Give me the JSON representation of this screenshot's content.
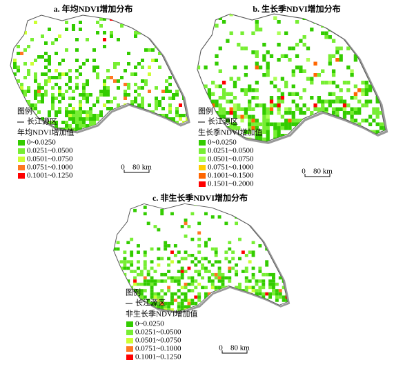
{
  "panels": [
    {
      "title": "a. 年均NDVI增加分布",
      "legend_title": "图例",
      "boundary_label": "长江源区",
      "legend_heading": "年均NDVI增加值",
      "classes": [
        {
          "label": "0~0.0250",
          "color": "#33cc00"
        },
        {
          "label": "0.0251~0.0500",
          "color": "#77ee33"
        },
        {
          "label": "0.0501~0.0750",
          "color": "#ccff33"
        },
        {
          "label": "0.0751~0.1000",
          "color": "#ff7722"
        },
        {
          "label": "0.1001~0.1250",
          "color": "#ff0000"
        }
      ],
      "scale_zero": "0",
      "scale_label": "80 km"
    },
    {
      "title": "b. 生长季NDVI增加分布",
      "legend_title": "图例",
      "boundary_label": "长江源区",
      "legend_heading": "生长季NDVI增加值",
      "classes": [
        {
          "label": "0~0.0250",
          "color": "#33cc00"
        },
        {
          "label": "0.0251~0.0500",
          "color": "#77ee33"
        },
        {
          "label": "0.0501~0.0750",
          "color": "#aaff55"
        },
        {
          "label": "0.0751~0.1000",
          "color": "#ffcc00"
        },
        {
          "label": "0.1001~0.1500",
          "color": "#ff6600"
        },
        {
          "label": "0.1501~0.2000",
          "color": "#ff0000"
        }
      ],
      "scale_zero": "0",
      "scale_label": "80 km"
    },
    {
      "title": "c. 非生长季NDVI增加分布",
      "legend_title": "图例",
      "boundary_label": "长江源区",
      "legend_heading": "非生长季NDVI增加值",
      "classes": [
        {
          "label": "0~0.0250",
          "color": "#33cc00"
        },
        {
          "label": "0.0251~0.0500",
          "color": "#77ee33"
        },
        {
          "label": "0.0501~0.0750",
          "color": "#ccff33"
        },
        {
          "label": "0.0751~0.1000",
          "color": "#ff7722"
        },
        {
          "label": "0.1001~0.1250",
          "color": "#ff0000"
        }
      ],
      "scale_zero": "0",
      "scale_label": "80 km"
    }
  ]
}
